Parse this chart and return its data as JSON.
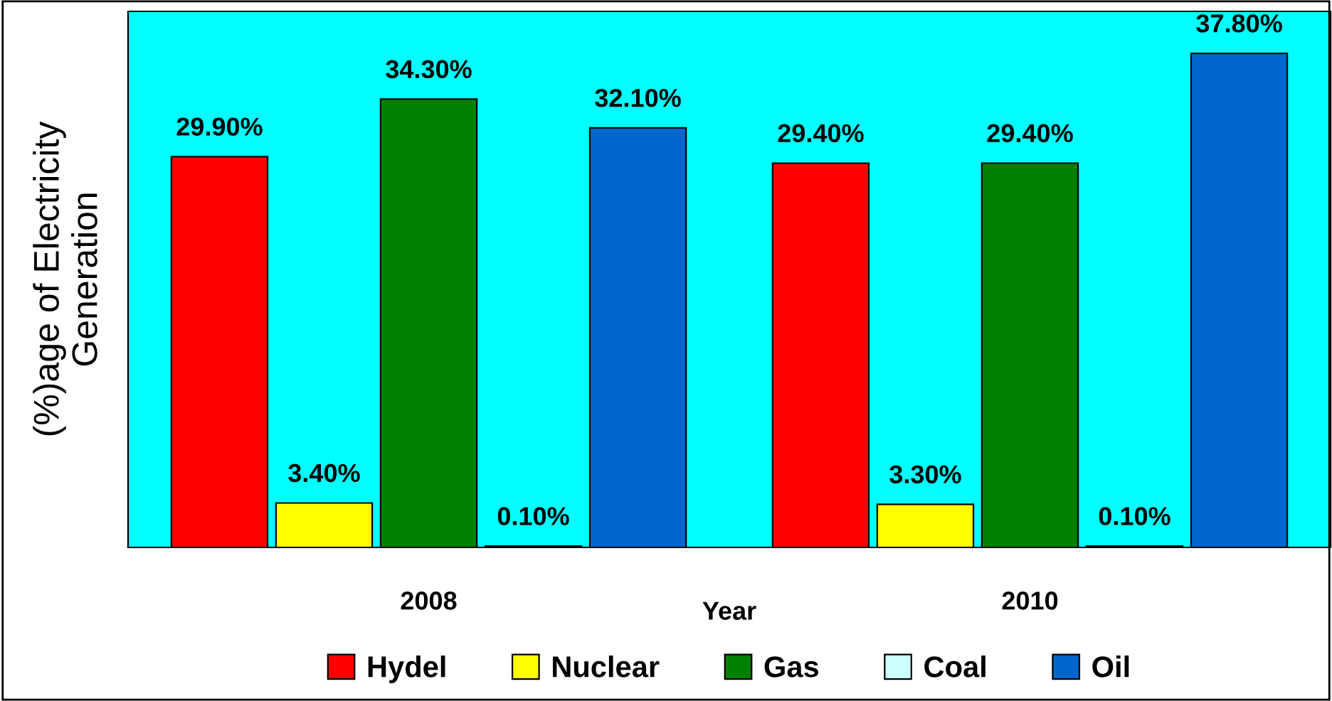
{
  "chart_data": {
    "type": "bar",
    "xlabel": "Year",
    "ylabel": "(%)age of Electricity\nGeneration",
    "categories": [
      "2008",
      "2010"
    ],
    "series": [
      {
        "name": "Hydel",
        "color": "#ff0000",
        "values": [
          29.9,
          29.4
        ],
        "value_labels": [
          "29.90%",
          "29.40%"
        ]
      },
      {
        "name": "Nuclear",
        "color": "#ffff00",
        "values": [
          3.4,
          3.3
        ],
        "value_labels": [
          "3.40%",
          "3.30%"
        ]
      },
      {
        "name": "Gas",
        "color": "#008000",
        "values": [
          34.3,
          29.4
        ],
        "value_labels": [
          "34.30%",
          "29.40%"
        ]
      },
      {
        "name": "Coal",
        "color": "#ccffff",
        "values": [
          0.1,
          0.1
        ],
        "value_labels": [
          "0.10%",
          "0.10%"
        ]
      },
      {
        "name": "Oil",
        "color": "#0066cc",
        "values": [
          32.1,
          37.8
        ],
        "value_labels": [
          "32.10%",
          "37.80%"
        ]
      }
    ],
    "legend": "bottom",
    "grid": false,
    "tick_labels": "x"
  }
}
